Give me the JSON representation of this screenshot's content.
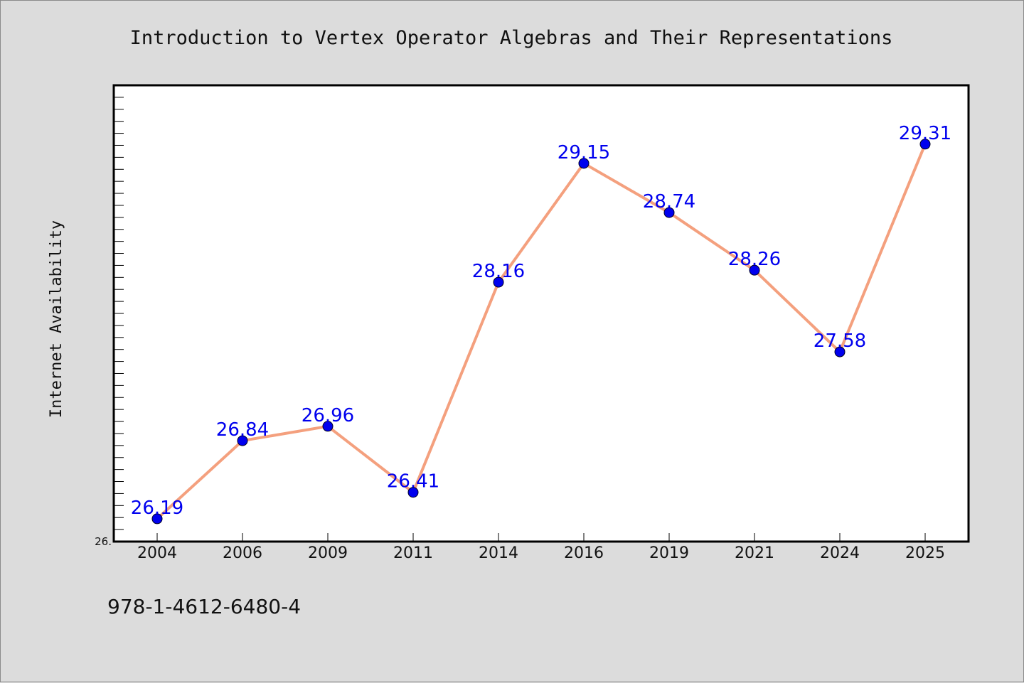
{
  "chart_data": {
    "type": "line",
    "title": "Introduction to Vertex Operator Algebras and Their Representations",
    "ylabel": "Internet Availability",
    "xlabel": "",
    "categories": [
      "2004",
      "2006",
      "2009",
      "2011",
      "2014",
      "2016",
      "2019",
      "2021",
      "2024",
      "2025"
    ],
    "series": [
      {
        "values": [
          26.19,
          26.84,
          26.96,
          26.41,
          28.16,
          29.15,
          28.74,
          28.26,
          27.58,
          29.31
        ],
        "labels": [
          "26.19",
          "26.84",
          "26.96",
          "26.41",
          "28.16",
          "29.15",
          "28.74",
          "28.26",
          "27.58",
          "29.31"
        ]
      }
    ],
    "ylim": [
      26.0,
      29.8
    ],
    "ytick_label": "26.",
    "grid": false,
    "line_color": "#f4a07e",
    "marker_color": "#0000ee",
    "label_color": "#0000ee"
  },
  "footer": {
    "isbn": "978-1-4612-6480-4"
  }
}
